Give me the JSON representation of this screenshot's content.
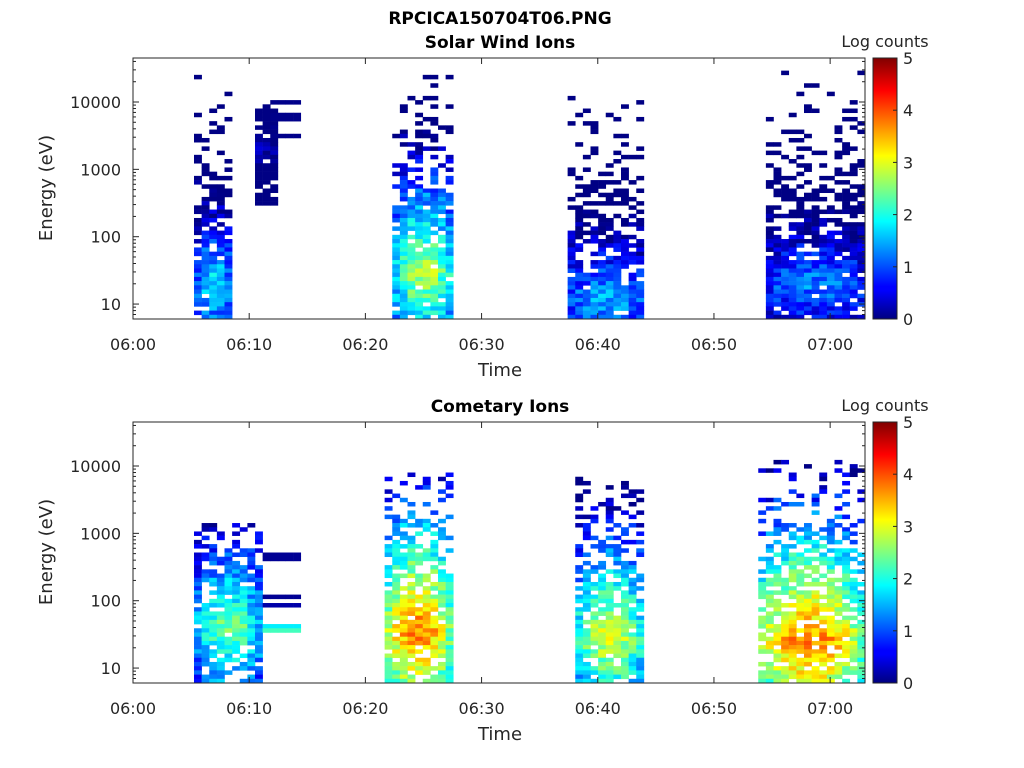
{
  "figure_title": "RPCICA150704T06.PNG",
  "colors": {
    "colormap": "jet",
    "axis": "#262626",
    "background": "#ffffff"
  },
  "chart_data": [
    {
      "type": "heatmap",
      "title": "Solar Wind Ions",
      "xlabel": "Time",
      "ylabel": "Energy (eV)",
      "yscale": "log",
      "x_range": [
        "06:00",
        "07:03"
      ],
      "ylim": [
        6,
        45000
      ],
      "x_ticks": [
        "06:00",
        "06:10",
        "06:20",
        "06:30",
        "06:40",
        "06:50",
        "07:00"
      ],
      "y_ticks": [
        "10",
        "100",
        "1000",
        "10000"
      ],
      "colorbar": {
        "label": "Log counts",
        "range": [
          0,
          5
        ],
        "ticks": [
          "0",
          "1",
          "2",
          "3",
          "4",
          "5"
        ]
      },
      "bursts": [
        {
          "start": "06:05.5",
          "end": "06:08.5",
          "low_eV": 6,
          "high_eV": 27000,
          "peak_log": 1.8,
          "peak_eV": 20
        },
        {
          "start": "06:10.5",
          "end": "06:12.5",
          "low_eV": 300,
          "high_eV": 9000,
          "peak_log": 0.1,
          "peak_eV": 2000
        },
        {
          "start": "06:22.5",
          "end": "06:27.5",
          "low_eV": 6,
          "high_eV": 25000,
          "peak_log": 2.8,
          "peak_eV": 30
        },
        {
          "start": "06:37.5",
          "end": "06:44.0",
          "low_eV": 6,
          "high_eV": 15000,
          "peak_log": 1.5,
          "peak_eV": 12
        },
        {
          "start": "06:54.5",
          "end": "07:03.0",
          "low_eV": 6,
          "high_eV": 30000,
          "peak_log": 1.3,
          "peak_eV": 20
        }
      ],
      "lines": [
        {
          "start": "06:11.5",
          "end": "06:14.5",
          "energy_eV": 10000,
          "log": 0.05
        },
        {
          "start": "06:11.5",
          "end": "06:14.5",
          "energy_eV": 6000,
          "log": 0.05
        },
        {
          "start": "06:11.5",
          "end": "06:14.5",
          "energy_eV": 3300,
          "log": 0.05
        }
      ]
    },
    {
      "type": "heatmap",
      "title": "Cometary Ions",
      "xlabel": "Time",
      "ylabel": "Energy (eV)",
      "yscale": "log",
      "x_range": [
        "06:00",
        "07:03"
      ],
      "ylim": [
        6,
        45000
      ],
      "x_ticks": [
        "06:00",
        "06:10",
        "06:20",
        "06:30",
        "06:40",
        "06:50",
        "07:00"
      ],
      "y_ticks": [
        "10",
        "100",
        "1000",
        "10000"
      ],
      "colorbar": {
        "label": "Log counts",
        "range": [
          0,
          5
        ],
        "ticks": [
          "0",
          "1",
          "2",
          "3",
          "4",
          "5"
        ]
      },
      "bursts": [
        {
          "start": "06:05.5",
          "end": "06:11.0",
          "low_eV": 6,
          "high_eV": 1500,
          "peak_log": 2.5,
          "peak_eV": 40
        },
        {
          "start": "06:21.5",
          "end": "06:27.5",
          "low_eV": 6,
          "high_eV": 8000,
          "peak_log": 3.8,
          "peak_eV": 35
        },
        {
          "start": "06:38.0",
          "end": "06:44.0",
          "low_eV": 6,
          "high_eV": 7000,
          "peak_log": 3.0,
          "peak_eV": 30
        },
        {
          "start": "06:53.5",
          "end": "07:03.0",
          "low_eV": 6,
          "high_eV": 12000,
          "peak_log": 3.8,
          "peak_eV": 25
        }
      ],
      "lines": [
        {
          "start": "06:11.0",
          "end": "06:14.5",
          "energy_eV": 450,
          "log": 0.1
        },
        {
          "start": "06:11.0",
          "end": "06:14.5",
          "energy_eV": 120,
          "log": 0.1
        },
        {
          "start": "06:11.0",
          "end": "06:14.5",
          "energy_eV": 85,
          "log": 0.2
        },
        {
          "start": "06:11.0",
          "end": "06:14.5",
          "energy_eV": 42,
          "log": 1.8
        },
        {
          "start": "06:11.0",
          "end": "06:14.5",
          "energy_eV": 37,
          "log": 2.2
        }
      ]
    }
  ]
}
